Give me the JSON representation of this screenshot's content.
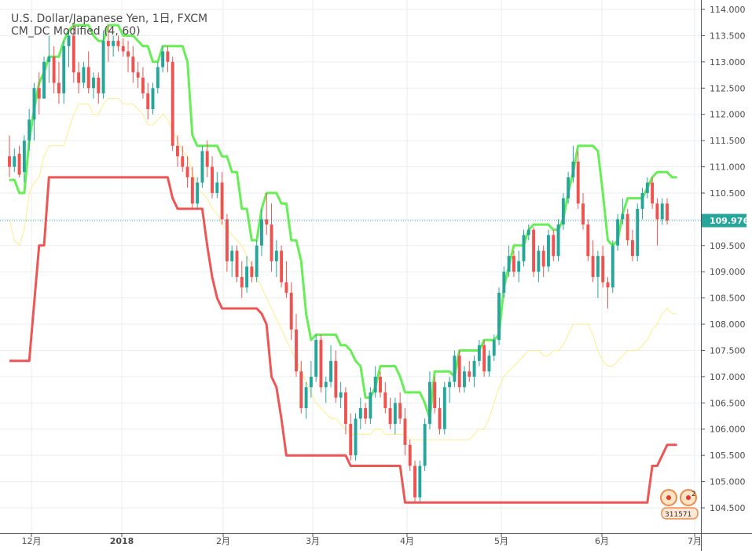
{
  "header": {
    "symbol_line": "U.S. Dollar/Japanese Yen, 1日, FXCM",
    "indicator_line": "CM_DC Modified (4, 60)"
  },
  "price_axis": {
    "ticks": [
      "114.000",
      "113.500",
      "113.000",
      "112.500",
      "112.000",
      "111.500",
      "111.000",
      "110.500",
      "110.000",
      "109.500",
      "109.000",
      "108.500",
      "108.000",
      "107.500",
      "107.000",
      "106.500",
      "106.000",
      "105.500",
      "105.000",
      "104.500"
    ],
    "last_price": "109.976"
  },
  "time_axis": {
    "ticks": [
      "12月",
      "2018",
      "2月",
      "3月",
      "4月",
      "5月",
      "6月",
      "7月"
    ]
  },
  "badge": {
    "count": "2",
    "label": "311571"
  },
  "colors": {
    "bull": "#26a69a",
    "bear": "#ef5350",
    "upper_band": "#66ee55",
    "lower_band": "#ee5555",
    "mid_band": "#ffee88",
    "last_price_bg": "#26a69a",
    "grid": "#eaeef2"
  },
  "chart_data": {
    "type": "candlestick",
    "title": "U.S. Dollar/Japanese Yen, 1日, FXCM",
    "indicator": "CM_DC Modified (4, 60)",
    "ylim": [
      104.25,
      114.1
    ],
    "last_price": 109.976,
    "candles": [
      [
        111.2,
        111.6,
        110.8,
        111.0
      ],
      [
        111.0,
        111.35,
        110.9,
        111.2
      ],
      [
        111.25,
        111.4,
        110.8,
        110.85
      ],
      [
        110.9,
        111.6,
        110.7,
        111.5
      ],
      [
        111.5,
        112.1,
        111.3,
        111.9
      ],
      [
        111.9,
        112.6,
        111.5,
        112.5
      ],
      [
        112.5,
        112.8,
        112.0,
        112.3
      ],
      [
        112.3,
        113.1,
        112.3,
        113.0
      ],
      [
        113.0,
        113.5,
        112.6,
        113.1
      ],
      [
        113.1,
        113.3,
        112.4,
        112.6
      ],
      [
        112.6,
        113.0,
        112.2,
        112.4
      ],
      [
        112.4,
        113.4,
        112.2,
        113.3
      ],
      [
        113.3,
        113.6,
        112.9,
        113.5
      ],
      [
        113.5,
        113.7,
        112.6,
        112.8
      ],
      [
        112.8,
        113.0,
        112.4,
        112.6
      ],
      [
        112.6,
        113.0,
        112.5,
        112.9
      ],
      [
        112.9,
        113.2,
        112.4,
        112.5
      ],
      [
        112.5,
        112.8,
        112.3,
        112.7
      ],
      [
        112.7,
        112.8,
        112.2,
        112.4
      ],
      [
        112.4,
        113.6,
        112.3,
        113.4
      ],
      [
        113.4,
        113.7,
        113.0,
        113.3
      ],
      [
        113.3,
        113.5,
        113.1,
        113.4
      ],
      [
        113.4,
        113.5,
        113.2,
        113.3
      ],
      [
        113.3,
        113.45,
        113.1,
        113.2
      ],
      [
        113.2,
        113.4,
        112.8,
        113.1
      ],
      [
        113.1,
        113.3,
        112.6,
        112.8
      ],
      [
        112.8,
        113.0,
        112.5,
        112.7
      ],
      [
        112.7,
        112.9,
        112.3,
        112.4
      ],
      [
        112.4,
        112.6,
        111.9,
        112.1
      ],
      [
        112.1,
        112.6,
        112.0,
        112.5
      ],
      [
        112.5,
        113.0,
        112.4,
        112.9
      ],
      [
        112.9,
        113.3,
        112.8,
        113.2
      ],
      [
        113.2,
        113.3,
        112.8,
        113.0
      ],
      [
        113.0,
        113.1,
        111.3,
        111.4
      ],
      [
        111.4,
        111.6,
        111.0,
        111.2
      ],
      [
        111.2,
        111.4,
        110.9,
        111.0
      ],
      [
        111.0,
        111.2,
        110.6,
        110.8
      ],
      [
        110.8,
        111.0,
        110.2,
        110.3
      ],
      [
        110.3,
        110.8,
        110.2,
        110.7
      ],
      [
        110.7,
        111.4,
        110.6,
        111.3
      ],
      [
        111.3,
        111.5,
        110.8,
        111.0
      ],
      [
        111.0,
        111.2,
        110.4,
        110.5
      ],
      [
        110.5,
        110.9,
        110.4,
        110.7
      ],
      [
        110.7,
        110.9,
        109.9,
        110.0
      ],
      [
        110.0,
        110.1,
        109.0,
        109.2
      ],
      [
        109.2,
        109.5,
        108.9,
        109.4
      ],
      [
        109.4,
        109.5,
        108.8,
        108.9
      ],
      [
        108.9,
        109.2,
        108.5,
        108.7
      ],
      [
        108.7,
        109.3,
        108.6,
        109.1
      ],
      [
        109.1,
        109.2,
        108.8,
        108.9
      ],
      [
        108.9,
        109.6,
        108.8,
        109.5
      ],
      [
        109.5,
        110.2,
        109.3,
        110.0
      ],
      [
        110.0,
        110.5,
        109.7,
        109.9
      ],
      [
        109.9,
        110.3,
        109.0,
        109.2
      ],
      [
        109.2,
        109.6,
        108.9,
        109.4
      ],
      [
        109.4,
        109.5,
        108.7,
        108.8
      ],
      [
        108.8,
        109.2,
        108.5,
        108.6
      ],
      [
        108.6,
        108.8,
        107.7,
        107.9
      ],
      [
        107.9,
        108.2,
        107.0,
        107.1
      ],
      [
        107.1,
        107.3,
        106.3,
        106.4
      ],
      [
        106.4,
        106.9,
        106.2,
        106.8
      ],
      [
        106.8,
        107.3,
        106.6,
        107.0
      ],
      [
        107.0,
        107.8,
        106.9,
        107.7
      ],
      [
        107.7,
        107.8,
        106.7,
        106.8
      ],
      [
        106.8,
        107.0,
        106.5,
        106.9
      ],
      [
        106.9,
        107.6,
        106.8,
        107.3
      ],
      [
        107.3,
        107.5,
        106.5,
        106.6
      ],
      [
        106.6,
        106.9,
        106.4,
        106.7
      ],
      [
        106.7,
        106.8,
        105.9,
        106.1
      ],
      [
        106.1,
        106.3,
        105.4,
        105.5
      ],
      [
        105.5,
        106.3,
        105.4,
        106.2
      ],
      [
        106.2,
        106.6,
        106.0,
        106.4
      ],
      [
        106.4,
        106.5,
        106.1,
        106.2
      ],
      [
        106.2,
        106.8,
        106.1,
        106.7
      ],
      [
        106.7,
        107.2,
        106.6,
        107.0
      ],
      [
        107.0,
        107.1,
        106.6,
        106.7
      ],
      [
        106.7,
        106.9,
        106.3,
        106.4
      ],
      [
        106.4,
        106.6,
        106.0,
        106.1
      ],
      [
        106.1,
        106.6,
        105.9,
        106.5
      ],
      [
        106.5,
        106.7,
        106.1,
        106.2
      ],
      [
        106.2,
        106.4,
        105.5,
        105.7
      ],
      [
        105.7,
        105.8,
        105.2,
        105.3
      ],
      [
        105.3,
        105.4,
        104.6,
        104.7
      ],
      [
        104.7,
        105.4,
        104.6,
        105.3
      ],
      [
        105.3,
        106.2,
        105.2,
        106.1
      ],
      [
        106.1,
        107.1,
        106.0,
        106.9
      ],
      [
        106.9,
        107.0,
        106.3,
        106.4
      ],
      [
        106.4,
        106.6,
        105.9,
        106.0
      ],
      [
        106.0,
        106.9,
        105.9,
        106.8
      ],
      [
        106.8,
        107.0,
        106.5,
        106.9
      ],
      [
        106.9,
        107.5,
        106.8,
        107.4
      ],
      [
        107.4,
        107.5,
        106.7,
        106.8
      ],
      [
        106.8,
        107.2,
        106.7,
        107.1
      ],
      [
        107.1,
        107.3,
        106.9,
        107.0
      ],
      [
        107.0,
        107.4,
        106.8,
        107.3
      ],
      [
        107.3,
        107.7,
        107.2,
        107.6
      ],
      [
        107.6,
        107.7,
        107.0,
        107.1
      ],
      [
        107.1,
        107.5,
        107.0,
        107.4
      ],
      [
        107.4,
        107.8,
        107.3,
        107.7
      ],
      [
        107.7,
        108.7,
        107.6,
        108.6
      ],
      [
        108.6,
        109.1,
        108.5,
        109.0
      ],
      [
        109.0,
        109.5,
        108.9,
        109.3
      ],
      [
        109.3,
        109.4,
        108.9,
        109.0
      ],
      [
        109.0,
        109.4,
        108.8,
        109.2
      ],
      [
        109.2,
        109.8,
        109.1,
        109.7
      ],
      [
        109.7,
        109.9,
        109.6,
        109.8
      ],
      [
        109.8,
        109.85,
        108.9,
        109.0
      ],
      [
        109.0,
        109.5,
        108.8,
        109.4
      ],
      [
        109.4,
        109.5,
        108.9,
        109.1
      ],
      [
        109.1,
        109.8,
        109.0,
        109.7
      ],
      [
        109.7,
        109.8,
        109.2,
        109.3
      ],
      [
        109.3,
        110.0,
        109.2,
        109.9
      ],
      [
        109.9,
        110.5,
        109.8,
        110.4
      ],
      [
        110.4,
        110.9,
        110.3,
        110.8
      ],
      [
        110.8,
        111.4,
        110.7,
        111.1
      ],
      [
        111.1,
        111.3,
        110.2,
        110.3
      ],
      [
        110.3,
        110.5,
        109.8,
        109.9
      ],
      [
        109.9,
        110.0,
        109.2,
        109.3
      ],
      [
        109.3,
        109.6,
        108.8,
        108.9
      ],
      [
        108.9,
        109.4,
        108.5,
        109.3
      ],
      [
        109.3,
        109.5,
        108.7,
        108.8
      ],
      [
        108.8,
        108.9,
        108.3,
        108.7
      ],
      [
        108.7,
        109.6,
        108.6,
        109.5
      ],
      [
        109.5,
        110.1,
        109.4,
        110.0
      ],
      [
        110.0,
        110.4,
        109.9,
        110.1
      ],
      [
        110.1,
        110.2,
        109.5,
        109.6
      ],
      [
        109.6,
        109.8,
        109.2,
        109.3
      ],
      [
        109.3,
        110.3,
        109.2,
        110.2
      ],
      [
        110.2,
        110.6,
        110.0,
        110.5
      ],
      [
        110.5,
        110.8,
        110.4,
        110.7
      ],
      [
        110.7,
        110.8,
        110.2,
        110.3
      ],
      [
        110.3,
        110.4,
        109.5,
        110.0
      ],
      [
        110.0,
        110.4,
        109.9,
        110.3
      ],
      [
        110.3,
        110.4,
        109.9,
        109.976
      ]
    ],
    "upper_band": [
      110.75,
      110.75,
      110.5,
      110.5,
      111.5,
      112.1,
      112.6,
      112.8,
      113.1,
      113.1,
      113.1,
      113.4,
      113.6,
      113.7,
      113.7,
      113.7,
      113.7,
      113.5,
      113.4,
      113.4,
      113.7,
      113.7,
      113.7,
      113.5,
      113.5,
      113.5,
      113.4,
      113.3,
      113.3,
      113.0,
      113.0,
      113.3,
      113.3,
      113.3,
      113.3,
      113.3,
      113.0,
      111.6,
      111.4,
      111.4,
      111.4,
      111.4,
      111.4,
      111.2,
      111.2,
      110.9,
      110.9,
      110.2,
      110.2,
      109.6,
      109.6,
      110.2,
      110.5,
      110.5,
      110.5,
      110.3,
      110.3,
      109.6,
      109.6,
      109.2,
      108.2,
      107.7,
      107.8,
      107.8,
      107.8,
      107.8,
      107.8,
      107.6,
      107.6,
      107.5,
      107.3,
      107.2,
      106.6,
      106.6,
      106.8,
      107.2,
      107.2,
      107.2,
      107.2,
      107.0,
      106.7,
      106.7,
      106.7,
      106.7,
      106.5,
      106.2,
      107.1,
      107.1,
      107.1,
      107.1,
      107.0,
      107.5,
      107.5,
      107.5,
      107.5,
      107.5,
      107.7,
      107.7,
      107.7,
      107.8,
      108.7,
      109.1,
      109.5,
      109.5,
      109.5,
      109.8,
      109.9,
      109.9,
      109.9,
      109.9,
      109.8,
      109.8,
      110.0,
      110.5,
      110.9,
      111.4,
      111.4,
      111.4,
      111.4,
      111.3,
      110.5,
      109.6,
      109.5,
      109.6,
      110.1,
      110.4,
      110.4,
      110.4,
      110.4,
      110.6,
      110.8,
      110.9,
      110.9,
      110.9,
      110.8,
      110.8
    ],
    "lower_band": [
      107.3,
      107.3,
      107.3,
      107.3,
      107.3,
      108.4,
      109.5,
      109.5,
      110.8,
      110.8,
      110.8,
      110.8,
      110.8,
      110.8,
      110.8,
      110.8,
      110.8,
      110.8,
      110.8,
      110.8,
      110.8,
      110.8,
      110.8,
      110.8,
      110.8,
      110.8,
      110.8,
      110.8,
      110.8,
      110.8,
      110.8,
      110.8,
      110.8,
      110.4,
      110.2,
      110.2,
      110.2,
      110.2,
      110.2,
      110.2,
      109.5,
      108.9,
      108.5,
      108.3,
      108.3,
      108.3,
      108.3,
      108.3,
      108.3,
      108.3,
      108.3,
      108.2,
      108.0,
      107.0,
      106.8,
      106.2,
      105.5,
      105.5,
      105.5,
      105.5,
      105.5,
      105.5,
      105.5,
      105.5,
      105.5,
      105.5,
      105.5,
      105.5,
      105.5,
      105.3,
      105.3,
      105.3,
      105.3,
      105.3,
      105.3,
      105.3,
      105.3,
      105.3,
      105.3,
      105.3,
      104.6,
      104.6,
      104.6,
      104.6,
      104.6,
      104.6,
      104.6,
      104.6,
      104.6,
      104.6,
      104.6,
      104.6,
      104.6,
      104.6,
      104.6,
      104.6,
      104.6,
      104.6,
      104.6,
      104.6,
      104.6,
      104.6,
      104.6,
      104.6,
      104.6,
      104.6,
      104.6,
      104.6,
      104.6,
      104.6,
      104.6,
      104.6,
      104.6,
      104.6,
      104.6,
      104.6,
      104.6,
      104.6,
      104.6,
      104.6,
      104.6,
      104.6,
      104.6,
      104.6,
      104.6,
      104.6,
      104.6,
      104.6,
      104.6,
      104.6,
      105.3,
      105.3,
      105.5,
      105.7,
      105.7,
      105.7
    ],
    "mid_band": [
      110.0,
      109.6,
      109.5,
      109.8,
      110.5,
      110.7,
      110.8,
      111.2,
      111.4,
      111.4,
      111.4,
      111.4,
      111.7,
      112.0,
      112.2,
      112.2,
      112.2,
      112.0,
      112.0,
      112.2,
      112.3,
      112.3,
      112.3,
      112.2,
      112.2,
      112.2,
      112.1,
      112.0,
      111.8,
      111.8,
      111.9,
      112.0,
      111.9,
      111.7,
      111.5,
      111.3,
      111.2,
      110.9,
      110.6,
      110.5,
      110.4,
      110.2,
      110.1,
      109.9,
      109.8,
      109.7,
      109.6,
      109.5,
      109.3,
      109.1,
      108.9,
      108.7,
      108.5,
      108.3,
      108.1,
      107.9,
      107.7,
      107.5,
      107.3,
      107.1,
      106.9,
      106.7,
      106.5,
      106.4,
      106.3,
      106.2,
      106.2,
      106.1,
      106.0,
      105.9,
      105.9,
      105.9,
      105.9,
      105.9,
      106.0,
      106.0,
      105.9,
      105.9,
      105.9,
      105.9,
      105.9,
      105.8,
      105.8,
      105.8,
      105.8,
      105.8,
      105.8,
      105.8,
      105.8,
      105.8,
      105.8,
      105.8,
      105.8,
      105.8,
      105.9,
      106.0,
      106.0,
      106.2,
      106.5,
      106.8,
      107.0,
      107.1,
      107.2,
      107.3,
      107.4,
      107.5,
      107.5,
      107.5,
      107.4,
      107.4,
      107.5,
      107.5,
      107.6,
      107.8,
      108.0,
      108.0,
      108.0,
      108.0,
      107.8,
      107.5,
      107.3,
      107.2,
      107.2,
      107.3,
      107.4,
      107.5,
      107.5,
      107.5,
      107.6,
      107.7,
      107.9,
      108.0,
      108.2,
      108.3,
      108.2,
      108.2
    ]
  }
}
